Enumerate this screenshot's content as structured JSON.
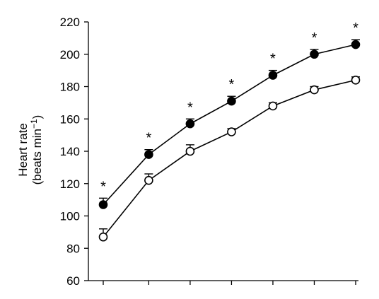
{
  "chart_data": {
    "type": "line",
    "ylabel": "Heart rate",
    "ylabel_unit_prefix": "(beats min",
    "ylabel_unit_superscript": "−1",
    "ylabel_unit_suffix": ")",
    "xlabel": "",
    "ylim": [
      60,
      220
    ],
    "yticks": [
      60,
      80,
      100,
      120,
      140,
      160,
      180,
      200,
      220
    ],
    "x_positions": [
      1,
      2,
      3,
      4,
      5,
      6,
      7
    ],
    "x_tick_positions": [
      1,
      2.1,
      3.1,
      4.1,
      5.1,
      6.1,
      7.1
    ],
    "series": [
      {
        "marker": "filled",
        "color": "#000000",
        "values": [
          107,
          138,
          157,
          171,
          187,
          200,
          206
        ],
        "errors": [
          4,
          3,
          3,
          3,
          3,
          3,
          3
        ]
      },
      {
        "marker": "open",
        "color": "#000000",
        "values": [
          87,
          122,
          140,
          152,
          168,
          178,
          184
        ],
        "errors": [
          5,
          4,
          4,
          2,
          2,
          2,
          2
        ]
      }
    ],
    "annotations": [
      "*",
      "*",
      "*",
      "*",
      "*",
      "*",
      "*"
    ],
    "grid": false,
    "legend": "none"
  }
}
